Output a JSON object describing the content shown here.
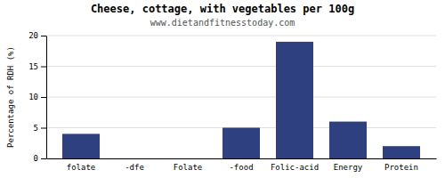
{
  "chart_data": {
    "type": "bar",
    "title": "Cheese, cottage, with vegetables per 100g",
    "subtitle": "www.dietandfitnesstoday.com",
    "categories": [
      "folate",
      "-dfe",
      "Folate",
      "-food",
      "Folic-acid",
      "Energy",
      "Protein"
    ],
    "values": [
      4.0,
      0.0,
      0.0,
      5.0,
      19.0,
      6.0,
      2.0
    ],
    "color": "#2e4080",
    "ylabel": "Percentage of RDH (%)",
    "ylim": [
      0,
      20
    ],
    "yticks": [
      0,
      5,
      10,
      15,
      20
    ],
    "grid": true
  }
}
